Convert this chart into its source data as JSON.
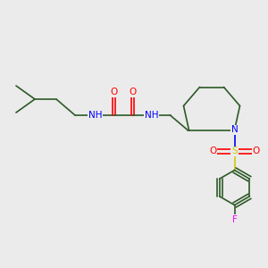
{
  "background_color": "#ebebeb",
  "bond_color": "#2d5a27",
  "atom_colors": {
    "N": "#0000ff",
    "O": "#ff0000",
    "S": "#cccc00",
    "F": "#ff00ff",
    "H": "#808080"
  },
  "figsize": [
    3.0,
    3.0
  ],
  "dpi": 100
}
